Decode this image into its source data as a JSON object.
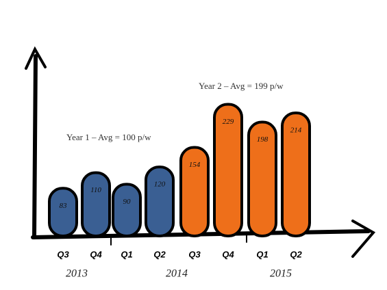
{
  "chart_data": {
    "type": "bar",
    "categories": [
      "Q3",
      "Q4",
      "Q1",
      "Q2",
      "Q3",
      "Q4",
      "Q1",
      "Q2"
    ],
    "values": [
      83,
      110,
      90,
      120,
      154,
      229,
      198,
      214
    ],
    "colors": [
      "#3a5f93",
      "#3a5f93",
      "#3a5f93",
      "#3a5f93",
      "#ee6f1a",
      "#ee6f1a",
      "#ee6f1a",
      "#ee6f1a"
    ],
    "group_labels": [
      "2013",
      "2014",
      "2015"
    ],
    "annotations": [
      "Year 1 – Avg = 100 p/w",
      "Year 2 – Avg = 199 p/w"
    ],
    "ylim": [
      0,
      320
    ]
  }
}
